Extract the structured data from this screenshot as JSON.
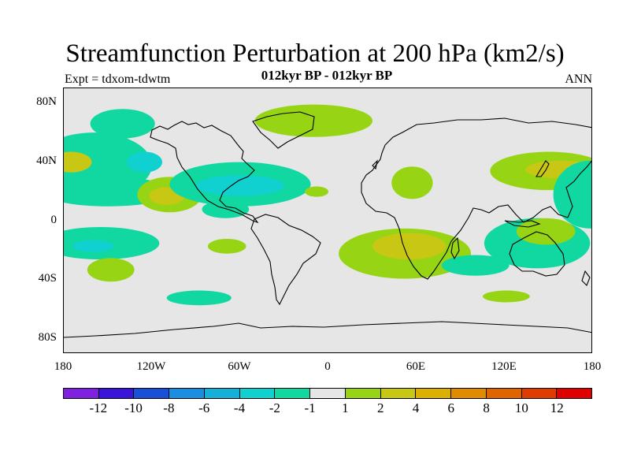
{
  "title": "Streamfunction Perturbation at 200 hPa (km2/s)",
  "subtitle": "012kyr BP - 012kyr BP",
  "left_label": "Expt = tdxom-tdwtm",
  "right_label": "ANN",
  "chart_data": {
    "type": "heatmap",
    "projection": "cylindrical-equidistant",
    "x_range": [
      -180,
      180
    ],
    "y_range": [
      -90,
      90
    ],
    "x_ticks": [
      {
        "value": -180,
        "label": "180"
      },
      {
        "value": -120,
        "label": "120W"
      },
      {
        "value": -60,
        "label": "60W"
      },
      {
        "value": 0,
        "label": "0"
      },
      {
        "value": 60,
        "label": "60E"
      },
      {
        "value": 120,
        "label": "120E"
      },
      {
        "value": 180,
        "label": "180"
      }
    ],
    "y_ticks": [
      {
        "value": 80,
        "label": "80N"
      },
      {
        "value": 40,
        "label": "40N"
      },
      {
        "value": 0,
        "label": "0"
      },
      {
        "value": -40,
        "label": "40S"
      },
      {
        "value": -80,
        "label": "80S"
      }
    ],
    "colorbar": {
      "colors": [
        "#8020e0",
        "#3a14d8",
        "#1850d8",
        "#1a8ee0",
        "#14b0d8",
        "#10d0d0",
        "#10d8a0",
        "#e6e6e6",
        "#96d414",
        "#c8c814",
        "#dcb000",
        "#e08c00",
        "#e06400",
        "#e03c00",
        "#e00000"
      ],
      "labels": [
        "-12",
        "-10",
        "-8",
        "-6",
        "-4",
        "-2",
        "-1",
        "1",
        "2",
        "4",
        "6",
        "8",
        "10",
        "12"
      ]
    },
    "regions": [
      {
        "name": "north-pacific-east",
        "lon": -160,
        "lat": 38,
        "rx": 40,
        "ry": 22,
        "level": "-1"
      },
      {
        "name": "north-pacific-west",
        "lon": -190,
        "lat": 42,
        "rx": 30,
        "ry": 15,
        "level": "-1"
      },
      {
        "name": "north-pacific-core",
        "lon": -175,
        "lat": 40,
        "rx": 14,
        "ry": 7,
        "level": "2"
      },
      {
        "name": "north-pacific-inner",
        "lon": -125,
        "lat": 40,
        "rx": 12,
        "ry": 7,
        "level": "-2"
      },
      {
        "name": "alaska",
        "lon": -140,
        "lat": 66,
        "rx": 22,
        "ry": 10,
        "level": "-1"
      },
      {
        "name": "east-pacific-tropics",
        "lon": -150,
        "lat": 20,
        "rx": 45,
        "ry": 10,
        "level": "-1"
      },
      {
        "name": "mexico",
        "lon": -108,
        "lat": 18,
        "rx": 22,
        "ry": 12,
        "level": "1"
      },
      {
        "name": "mexico-core",
        "lon": -110,
        "lat": 17,
        "rx": 12,
        "ry": 6,
        "level": "2"
      },
      {
        "name": "atlantic-band",
        "lon": -60,
        "lat": 25,
        "rx": 48,
        "ry": 15,
        "level": "-1"
      },
      {
        "name": "atlantic-core",
        "lon": -60,
        "lat": 24,
        "rx": 30,
        "ry": 7,
        "level": "-2"
      },
      {
        "name": "south-america-north",
        "lon": -70,
        "lat": 8,
        "rx": 16,
        "ry": 6,
        "level": "-1"
      },
      {
        "name": "europe-north",
        "lon": -10,
        "lat": 68,
        "rx": 40,
        "ry": 11,
        "level": "1"
      },
      {
        "name": "north-africa",
        "lon": -8,
        "lat": 20,
        "rx": 8,
        "ry": 3.5,
        "level": "1"
      },
      {
        "name": "arabia",
        "lon": 57,
        "lat": 26,
        "rx": 14,
        "ry": 11,
        "level": "1"
      },
      {
        "name": "south-pacific-east",
        "lon": -155,
        "lat": -15,
        "rx": 40,
        "ry": 11,
        "level": "-1"
      },
      {
        "name": "south-pacific-east-core",
        "lon": -160,
        "lat": -17,
        "rx": 14,
        "ry": 4,
        "level": "-2"
      },
      {
        "name": "south-pacific-mid",
        "lon": -148,
        "lat": -33,
        "rx": 16,
        "ry": 8,
        "level": "1"
      },
      {
        "name": "south-america-central",
        "lon": -69,
        "lat": -17,
        "rx": 13,
        "ry": 5,
        "level": "1"
      },
      {
        "name": "south-america-south",
        "lon": -88,
        "lat": -52,
        "rx": 22,
        "ry": 5,
        "level": "-1"
      },
      {
        "name": "indian-ocean",
        "lon": 52,
        "lat": -22,
        "rx": 45,
        "ry": 17,
        "level": "1"
      },
      {
        "name": "indian-ocean-core",
        "lon": 55,
        "lat": -17,
        "rx": 25,
        "ry": 9,
        "level": "2"
      },
      {
        "name": "australia-west",
        "lon": 100,
        "lat": -30,
        "rx": 23,
        "ry": 7,
        "level": "-1"
      },
      {
        "name": "australia-east",
        "lon": 142,
        "lat": -15,
        "rx": 36,
        "ry": 17,
        "level": "-1"
      },
      {
        "name": "australia-core",
        "lon": 148,
        "lat": -7,
        "rx": 20,
        "ry": 9,
        "level": "1"
      },
      {
        "name": "australia-south",
        "lon": 121,
        "lat": -51,
        "rx": 16,
        "ry": 4,
        "level": "1"
      },
      {
        "name": "japan",
        "lon": 150,
        "lat": 34,
        "rx": 40,
        "ry": 13,
        "level": "1"
      },
      {
        "name": "japan-core",
        "lon": 158,
        "lat": 35,
        "rx": 24,
        "ry": 6,
        "level": "2"
      },
      {
        "name": "north-pacific-dateline",
        "lon": 178,
        "lat": 18,
        "rx": 25,
        "ry": 23,
        "level": "-1"
      }
    ]
  }
}
